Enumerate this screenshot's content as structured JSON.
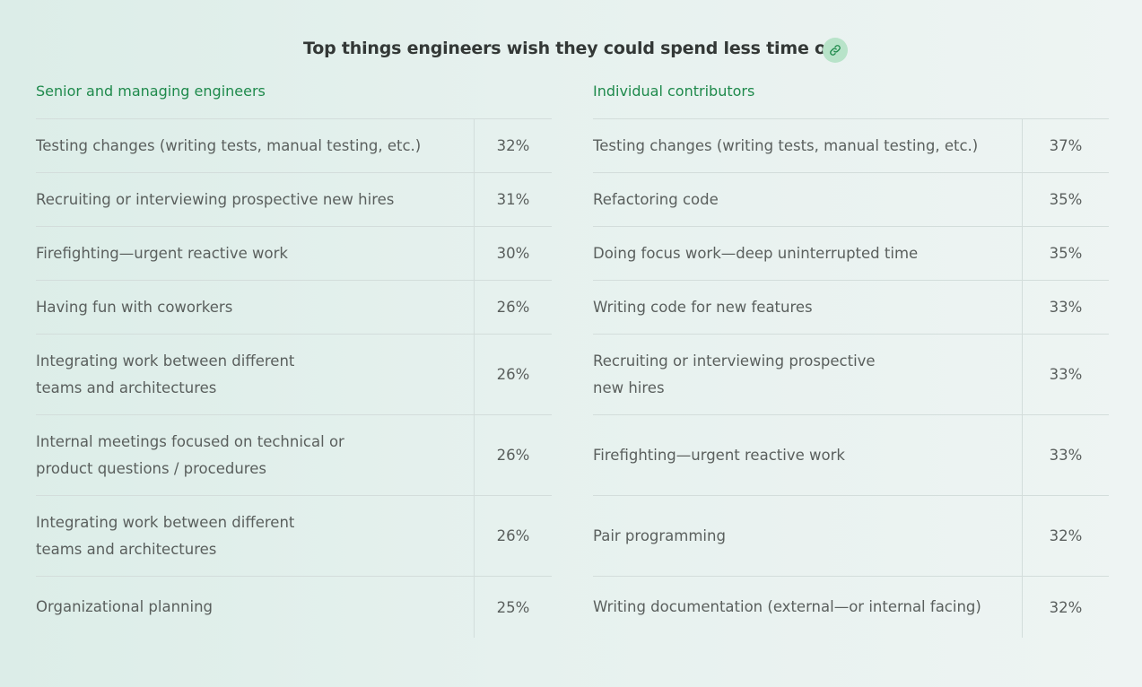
{
  "title": "Top things engineers wish they could spend less time on",
  "icons": {
    "link": "link-icon"
  },
  "colors": {
    "accent": "#1f8a4c",
    "link_button_bg": "#b8e3c9"
  },
  "left": {
    "heading": "Senior and managing engineers",
    "rows": [
      {
        "label_lines": [
          "Testing changes (writing tests, manual testing, etc.)"
        ],
        "value": "32%"
      },
      {
        "label_lines": [
          "Recruiting or interviewing prospective new hires"
        ],
        "value": "31%"
      },
      {
        "label_lines": [
          "Firefighting—urgent reactive work"
        ],
        "value": "30%"
      },
      {
        "label_lines": [
          "Having fun with coworkers"
        ],
        "value": "26%"
      },
      {
        "label_lines": [
          "Integrating work between different",
          "teams and architectures"
        ],
        "value": "26%"
      },
      {
        "label_lines": [
          "Internal meetings focused on technical or",
          "product questions / procedures"
        ],
        "value": "26%"
      },
      {
        "label_lines": [
          "Integrating work between different",
          "teams and architectures"
        ],
        "value": "26%"
      },
      {
        "label_lines": [
          "Organizational planning"
        ],
        "value": "25%"
      }
    ]
  },
  "right": {
    "heading": "Individual contributors",
    "rows": [
      {
        "label_lines": [
          "Testing changes (writing tests, manual testing, etc.)"
        ],
        "value": "37%"
      },
      {
        "label_lines": [
          "Refactoring code"
        ],
        "value": "35%"
      },
      {
        "label_lines": [
          "Doing focus work—deep uninterrupted time"
        ],
        "value": "35%"
      },
      {
        "label_lines": [
          "Writing code for new features"
        ],
        "value": "33%"
      },
      {
        "label_lines": [
          "Recruiting or interviewing prospective",
          "new hires"
        ],
        "value": "33%"
      },
      {
        "label_lines": [
          "Firefighting—urgent reactive work"
        ],
        "value": "33%"
      },
      {
        "label_lines": [
          "Pair programming"
        ],
        "value": "32%"
      },
      {
        "label_lines": [
          "Writing documentation (external—or internal facing)"
        ],
        "value": "32%"
      }
    ]
  }
}
